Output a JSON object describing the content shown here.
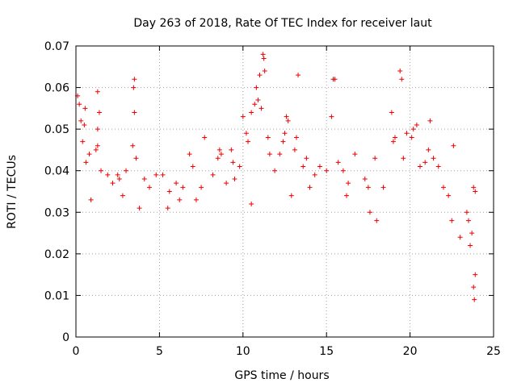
{
  "chart_data": {
    "type": "scatter",
    "title": "Day 263 of 2018, Rate Of TEC Index for receiver laut",
    "xlabel": "GPS time / hours",
    "ylabel": "ROTI / TECUs",
    "xlim": [
      0,
      25
    ],
    "ylim": [
      0,
      0.07
    ],
    "x_ticks": [
      0,
      5,
      10,
      15,
      20,
      25
    ],
    "x_tick_labels": [
      "0",
      "5",
      "10",
      "15",
      "20",
      "25"
    ],
    "y_ticks": [
      0,
      0.01,
      0.02,
      0.03,
      0.04,
      0.05,
      0.06,
      0.07
    ],
    "y_tick_labels": [
      "0",
      "0.01",
      "0.02",
      "0.03",
      "0.04",
      "0.05",
      "0.06",
      "0.07"
    ],
    "grid": true,
    "marker": "plus",
    "color": "#ee0000",
    "series": [
      {
        "name": "",
        "points": [
          [
            0.1,
            0.058
          ],
          [
            0.2,
            0.056
          ],
          [
            0.3,
            0.052
          ],
          [
            0.5,
            0.051
          ],
          [
            0.55,
            0.055
          ],
          [
            0.4,
            0.047
          ],
          [
            0.6,
            0.042
          ],
          [
            0.8,
            0.044
          ],
          [
            1.3,
            0.059
          ],
          [
            1.4,
            0.054
          ],
          [
            1.3,
            0.05
          ],
          [
            1.3,
            0.046
          ],
          [
            1.2,
            0.045
          ],
          [
            1.5,
            0.04
          ],
          [
            1.9,
            0.039
          ],
          [
            2.2,
            0.037
          ],
          [
            2.5,
            0.039
          ],
          [
            2.6,
            0.038
          ],
          [
            3.0,
            0.04
          ],
          [
            3.5,
            0.062
          ],
          [
            3.45,
            0.06
          ],
          [
            3.5,
            0.054
          ],
          [
            3.4,
            0.046
          ],
          [
            3.6,
            0.043
          ],
          [
            4.1,
            0.038
          ],
          [
            4.4,
            0.036
          ],
          [
            4.8,
            0.039
          ],
          [
            5.2,
            0.039
          ],
          [
            5.6,
            0.035
          ],
          [
            6.0,
            0.037
          ],
          [
            6.4,
            0.036
          ],
          [
            6.8,
            0.044
          ],
          [
            7.0,
            0.041
          ],
          [
            7.5,
            0.036
          ],
          [
            7.7,
            0.048
          ],
          [
            8.2,
            0.039
          ],
          [
            8.5,
            0.043
          ],
          [
            8.6,
            0.045
          ],
          [
            8.7,
            0.044
          ],
          [
            9.3,
            0.045
          ],
          [
            9.4,
            0.042
          ],
          [
            9.5,
            0.038
          ],
          [
            9.8,
            0.041
          ],
          [
            10.0,
            0.053
          ],
          [
            10.2,
            0.049
          ],
          [
            10.3,
            0.047
          ],
          [
            10.5,
            0.054
          ],
          [
            10.7,
            0.056
          ],
          [
            10.8,
            0.06
          ],
          [
            10.9,
            0.057
          ],
          [
            11.0,
            0.063
          ],
          [
            11.1,
            0.055
          ],
          [
            11.2,
            0.068
          ],
          [
            11.25,
            0.067
          ],
          [
            11.3,
            0.064
          ],
          [
            11.5,
            0.048
          ],
          [
            11.6,
            0.044
          ],
          [
            11.9,
            0.04
          ],
          [
            12.2,
            0.044
          ],
          [
            12.4,
            0.047
          ],
          [
            12.5,
            0.049
          ],
          [
            12.6,
            0.053
          ],
          [
            12.7,
            0.052
          ],
          [
            13.1,
            0.045
          ],
          [
            13.2,
            0.048
          ],
          [
            13.3,
            0.063
          ],
          [
            13.6,
            0.041
          ],
          [
            13.8,
            0.043
          ],
          [
            14.3,
            0.039
          ],
          [
            14.6,
            0.041
          ],
          [
            15.0,
            0.04
          ],
          [
            15.3,
            0.053
          ],
          [
            15.4,
            0.062
          ],
          [
            15.5,
            0.062
          ],
          [
            15.7,
            0.042
          ],
          [
            16.0,
            0.04
          ],
          [
            16.3,
            0.037
          ],
          [
            16.7,
            0.044
          ],
          [
            17.3,
            0.038
          ],
          [
            17.5,
            0.036
          ],
          [
            17.9,
            0.043
          ],
          [
            18.4,
            0.036
          ],
          [
            18.9,
            0.054
          ],
          [
            19.0,
            0.047
          ],
          [
            19.1,
            0.048
          ],
          [
            19.4,
            0.064
          ],
          [
            19.5,
            0.062
          ],
          [
            19.6,
            0.043
          ],
          [
            19.8,
            0.049
          ],
          [
            20.1,
            0.048
          ],
          [
            20.2,
            0.05
          ],
          [
            20.4,
            0.051
          ],
          [
            20.6,
            0.041
          ],
          [
            20.9,
            0.042
          ],
          [
            21.2,
            0.052
          ],
          [
            21.1,
            0.045
          ],
          [
            21.4,
            0.043
          ],
          [
            21.7,
            0.041
          ],
          [
            22.0,
            0.036
          ],
          [
            22.3,
            0.034
          ],
          [
            22.6,
            0.046
          ],
          [
            23.4,
            0.03
          ],
          [
            23.5,
            0.028
          ],
          [
            23.8,
            0.036
          ],
          [
            23.9,
            0.035
          ],
          [
            23.7,
            0.025
          ],
          [
            23.6,
            0.022
          ],
          [
            23.9,
            0.015
          ],
          [
            23.8,
            0.012
          ],
          [
            23.85,
            0.009
          ],
          [
            22.5,
            0.028
          ],
          [
            23.0,
            0.024
          ],
          [
            18.0,
            0.028
          ],
          [
            17.6,
            0.03
          ],
          [
            16.2,
            0.034
          ],
          [
            14.0,
            0.036
          ],
          [
            12.9,
            0.034
          ],
          [
            9.0,
            0.037
          ],
          [
            6.2,
            0.033
          ],
          [
            3.8,
            0.031
          ],
          [
            0.9,
            0.033
          ],
          [
            2.8,
            0.034
          ],
          [
            5.5,
            0.031
          ],
          [
            7.2,
            0.033
          ],
          [
            10.5,
            0.032
          ]
        ]
      }
    ]
  }
}
